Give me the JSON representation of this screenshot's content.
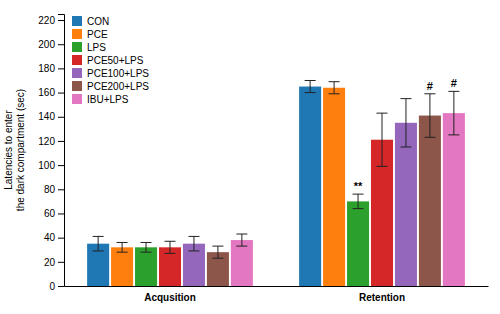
{
  "chart_data": {
    "type": "bar",
    "ylabel": "Latencies to enter\nthe dark compartment (sec)",
    "categories": [
      "Acqusition",
      "Retention"
    ],
    "series": [
      {
        "name": "CON",
        "values": [
          35,
          165
        ],
        "errors": [
          6,
          5
        ]
      },
      {
        "name": "PCE",
        "values": [
          32,
          164
        ],
        "errors": [
          4,
          5
        ]
      },
      {
        "name": "LPS",
        "values": [
          32,
          70
        ],
        "errors": [
          4,
          6
        ]
      },
      {
        "name": "PCE50+LPS",
        "values": [
          32,
          121
        ],
        "errors": [
          5,
          22
        ]
      },
      {
        "name": "PCE100+LPS",
        "values": [
          35,
          135
        ],
        "errors": [
          6,
          20
        ]
      },
      {
        "name": "PCE200+LPS",
        "values": [
          28,
          141
        ],
        "errors": [
          5,
          18
        ]
      },
      {
        "name": "IBU+LPS",
        "values": [
          38,
          143
        ],
        "errors": [
          5,
          18
        ]
      }
    ],
    "annotations": [
      {
        "text": "**",
        "series": "LPS",
        "category": "Retention"
      },
      {
        "text": "#",
        "series": "PCE200+LPS",
        "category": "Retention"
      },
      {
        "text": "#",
        "series": "IBU+LPS",
        "category": "Retention"
      }
    ],
    "ylim": [
      0,
      225
    ],
    "yticks": [
      0,
      20,
      40,
      60,
      80,
      100,
      120,
      140,
      160,
      180,
      200,
      220
    ],
    "legend": "upper left",
    "grid": false
  }
}
